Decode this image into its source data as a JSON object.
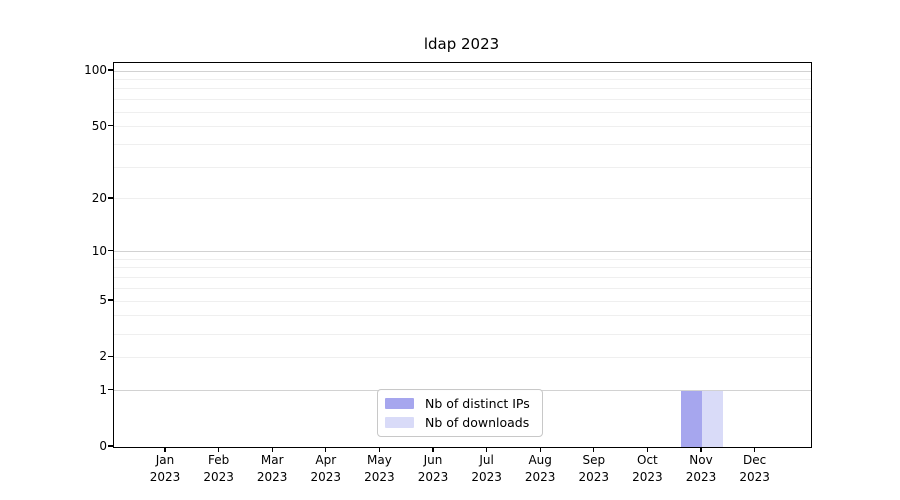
{
  "title": "ldap 2023",
  "colors": {
    "distinct_ips": "#a6a6ee",
    "downloads": "#d9dbf8",
    "grid_major": "#d2d2d2",
    "grid_minor": "#efefef",
    "axis_frame": "#000000",
    "legend_border": "#c8c8c8",
    "background": "#ffffff",
    "text": "#000000"
  },
  "legend": {
    "items": [
      {
        "label": "Nb of distinct IPs",
        "color": "#a6a6ee"
      },
      {
        "label": "Nb of downloads",
        "color": "#d9dbf8"
      }
    ]
  },
  "chart_data": {
    "type": "bar",
    "title": "ldap 2023",
    "categories": [
      "Jan 2023",
      "Feb 2023",
      "Mar 2023",
      "Apr 2023",
      "May 2023",
      "Jun 2023",
      "Jul 2023",
      "Aug 2023",
      "Sep 2023",
      "Oct 2023",
      "Nov 2023",
      "Dec 2023"
    ],
    "x_tick_months": [
      "Jan",
      "Feb",
      "Mar",
      "Apr",
      "May",
      "Jun",
      "Jul",
      "Aug",
      "Sep",
      "Oct",
      "Nov",
      "Dec"
    ],
    "x_tick_year": "2023",
    "series": [
      {
        "name": "Nb of distinct IPs",
        "color": "#a6a6ee",
        "values": [
          0,
          0,
          0,
          0,
          0,
          0,
          0,
          0,
          0,
          0,
          1,
          0
        ]
      },
      {
        "name": "Nb of downloads",
        "color": "#d9dbf8",
        "values": [
          0,
          0,
          0,
          0,
          0,
          0,
          0,
          0,
          0,
          0,
          1,
          0
        ]
      }
    ],
    "xlabel": "",
    "ylabel": "",
    "y_scale": "log1p",
    "y_ticks": [
      0,
      1,
      2,
      5,
      10,
      20,
      50,
      100
    ],
    "y_major_gridlines": [
      1,
      10,
      100
    ],
    "y_minor_gridlines": [
      2,
      3,
      4,
      5,
      6,
      7,
      8,
      9,
      20,
      30,
      40,
      50,
      60,
      70,
      80,
      90
    ],
    "ylim": [
      0,
      110
    ],
    "grid": true,
    "legend_position": "lower center"
  }
}
